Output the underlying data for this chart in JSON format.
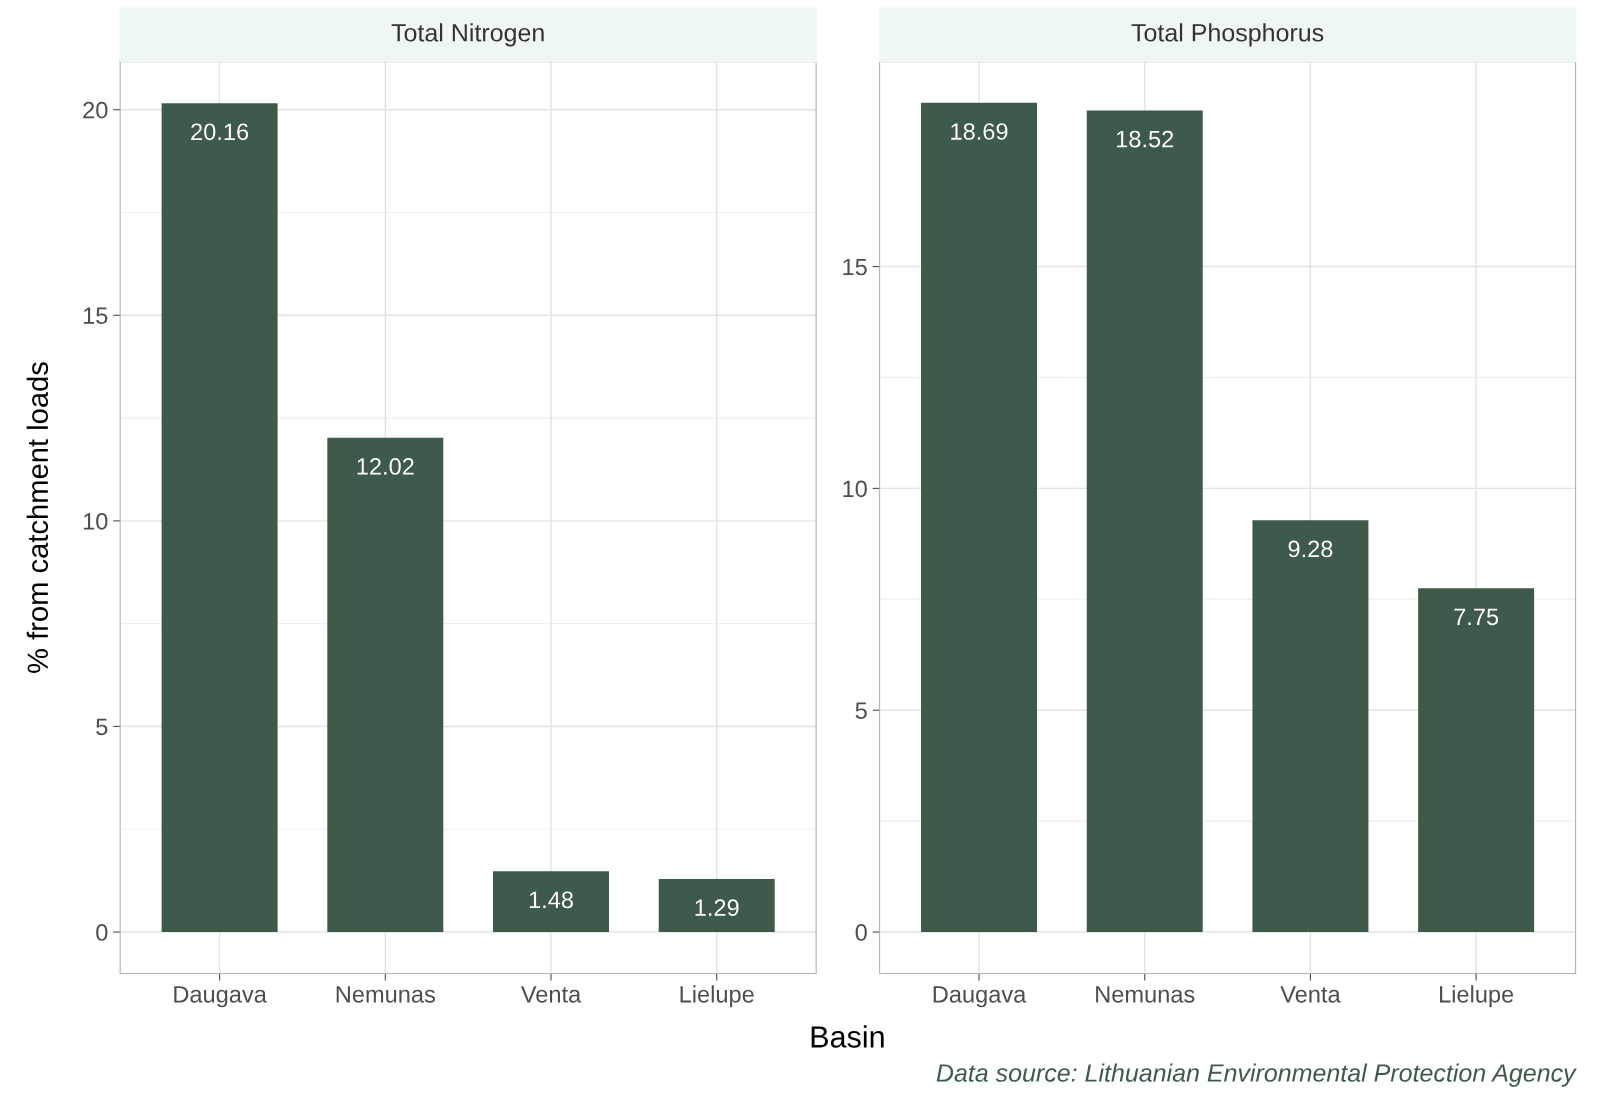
{
  "chart_data": [
    {
      "type": "bar",
      "title": "Total Nitrogen",
      "ylabel": "% from catchment loads",
      "xlabel": "Basin",
      "categories": [
        "Daugava",
        "Nemunas",
        "Venta",
        "Lielupe"
      ],
      "values": [
        20.16,
        12.02,
        1.48,
        1.29
      ],
      "color": "#3d5a4a",
      "data_labels": true,
      "ylim": [
        -1.008,
        21.17
      ],
      "yticks": [
        0,
        5,
        10,
        15,
        20
      ],
      "grid": true
    },
    {
      "type": "bar",
      "title": "Total Phosphorus",
      "categories": [
        "Daugava",
        "Nemunas",
        "Venta",
        "Lielupe"
      ],
      "values": [
        18.69,
        18.52,
        9.28,
        7.75
      ],
      "color": "#3d5a4a",
      "data_labels": true,
      "ylim": [
        -0.9345,
        19.62
      ],
      "yticks": [
        0,
        5,
        10,
        15
      ],
      "grid": true,
      "annotations": [
        "Data source: Lithuanian Environmental Protection Agency"
      ]
    }
  ]
}
